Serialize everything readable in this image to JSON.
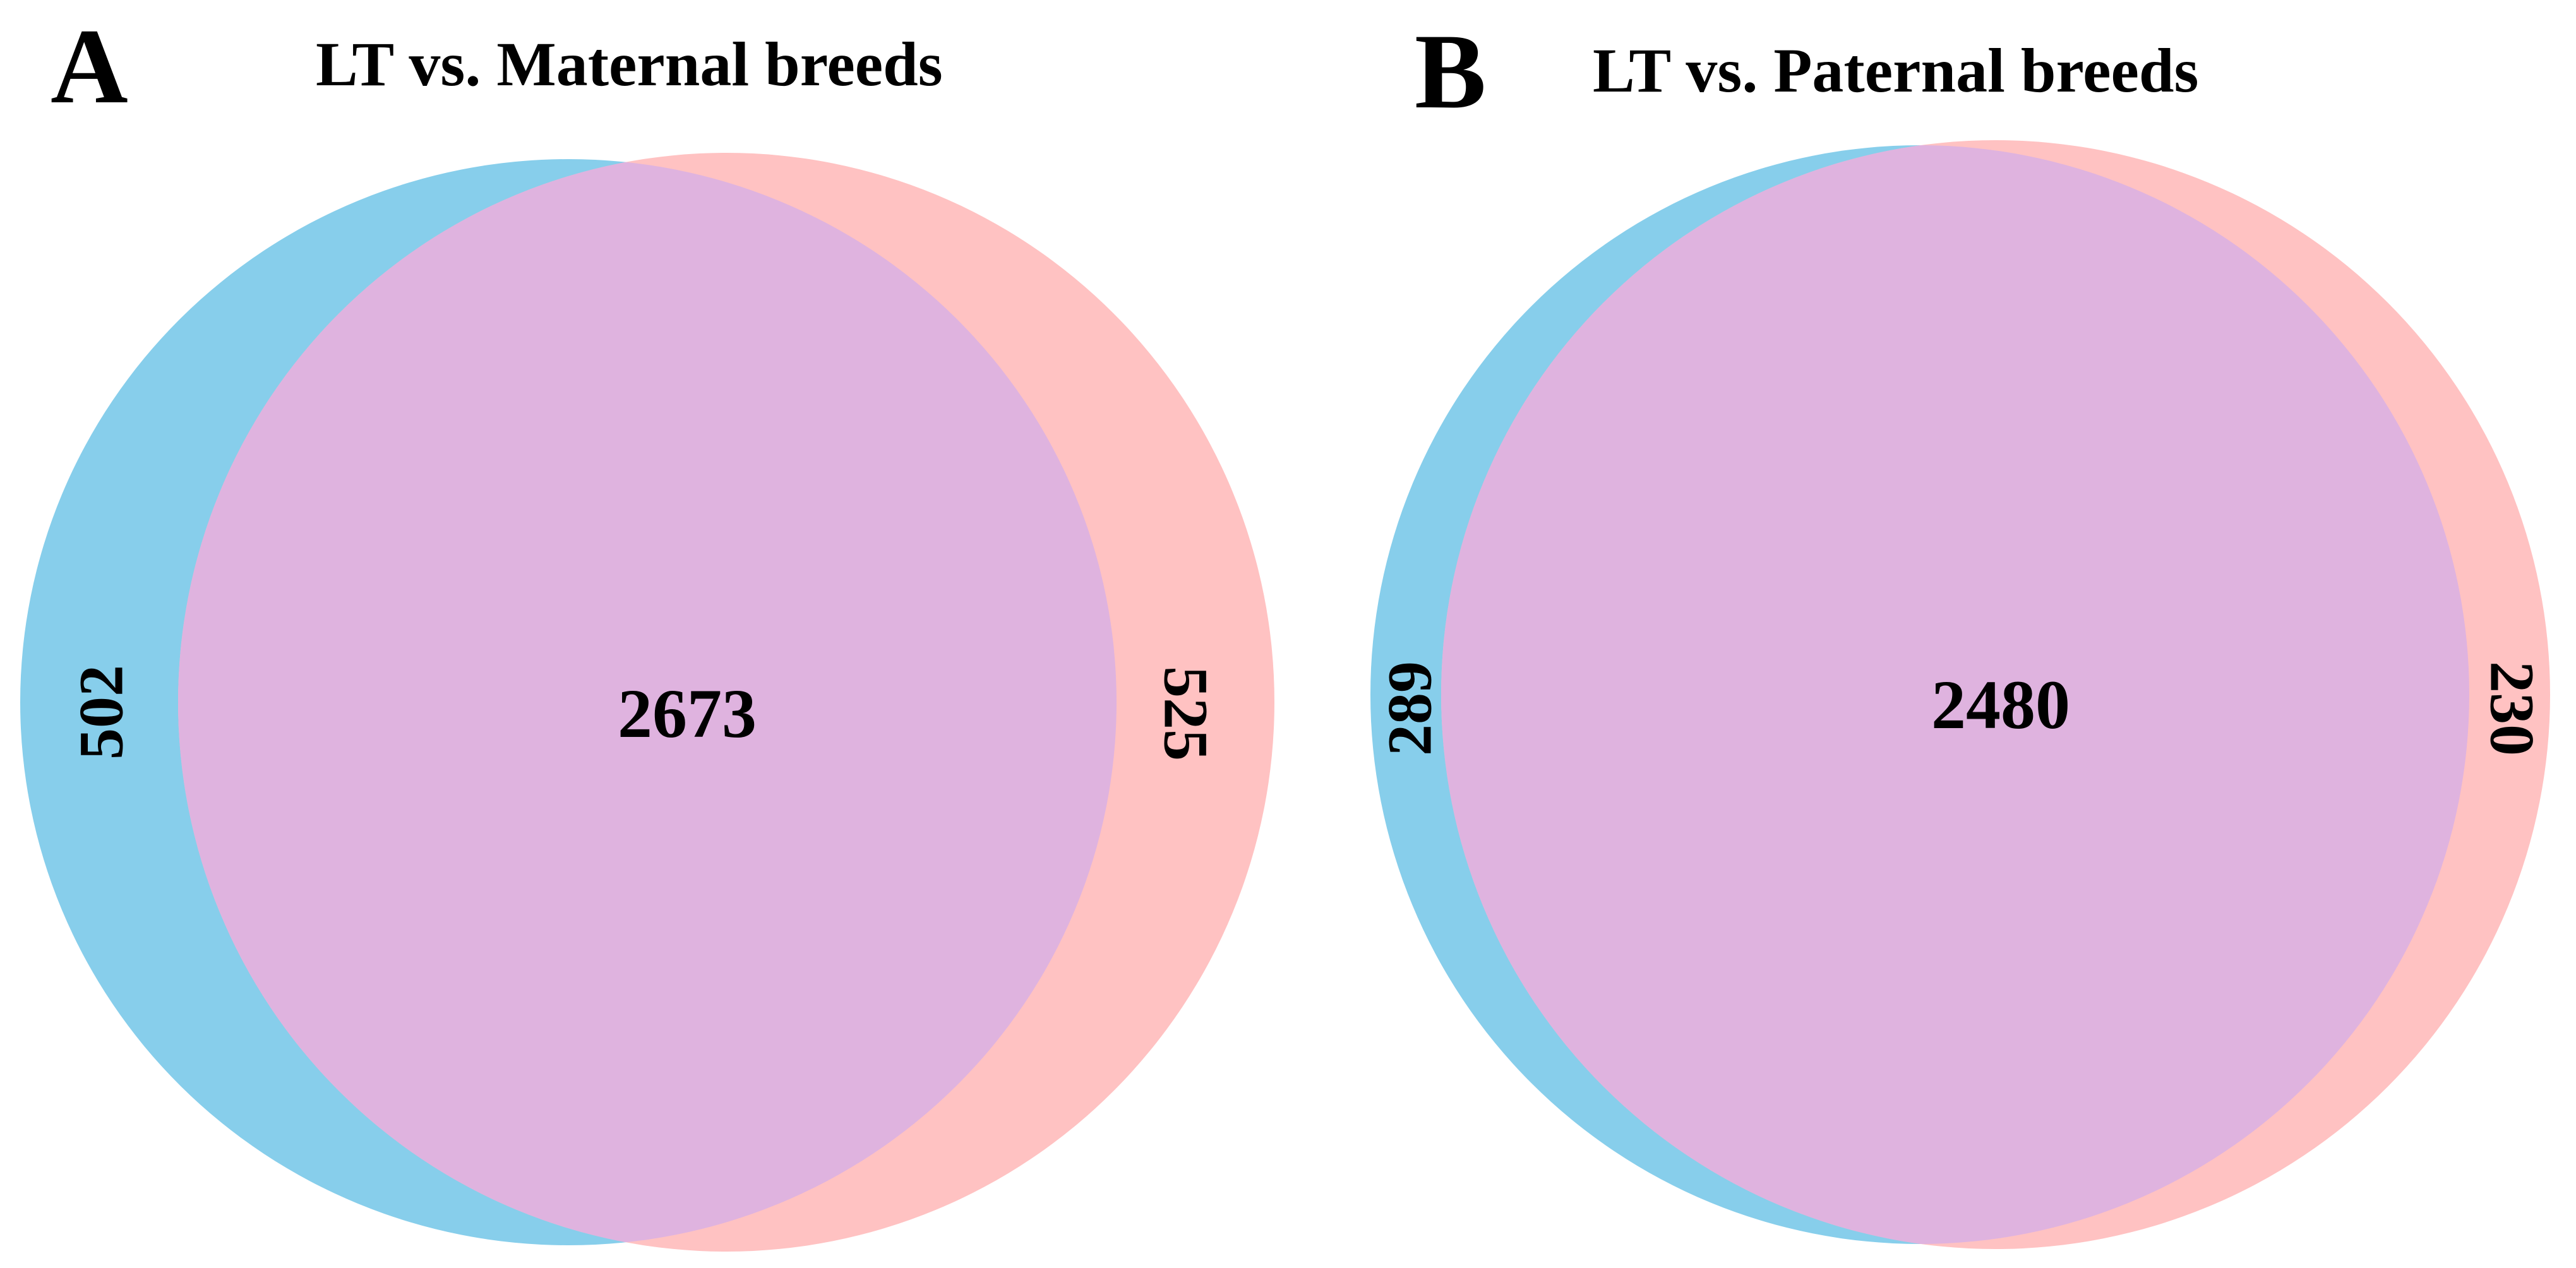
{
  "chart_data": [
    {
      "type": "venn",
      "panel": "A",
      "title": "LT vs. Maternal breeds",
      "sets": [
        {
          "name": "set-left",
          "color": "#87ceeb",
          "only": 502
        },
        {
          "name": "set-right",
          "color": "#ffc2c2",
          "only": 525
        }
      ],
      "overlap": {
        "value": 2673,
        "color": "#dfb3df"
      },
      "labels": {
        "left_only": "502",
        "overlap": "2673",
        "right_only": "525"
      }
    },
    {
      "type": "venn",
      "panel": "B",
      "title": "LT vs. Paternal breeds",
      "sets": [
        {
          "name": "set-left",
          "color": "#87ceeb",
          "only": 289
        },
        {
          "name": "set-right",
          "color": "#ffc2c2",
          "only": 230
        }
      ],
      "overlap": {
        "value": 2480,
        "color": "#dfb3df"
      },
      "labels": {
        "left_only": "289",
        "overlap": "2480",
        "right_only": "230"
      }
    }
  ]
}
